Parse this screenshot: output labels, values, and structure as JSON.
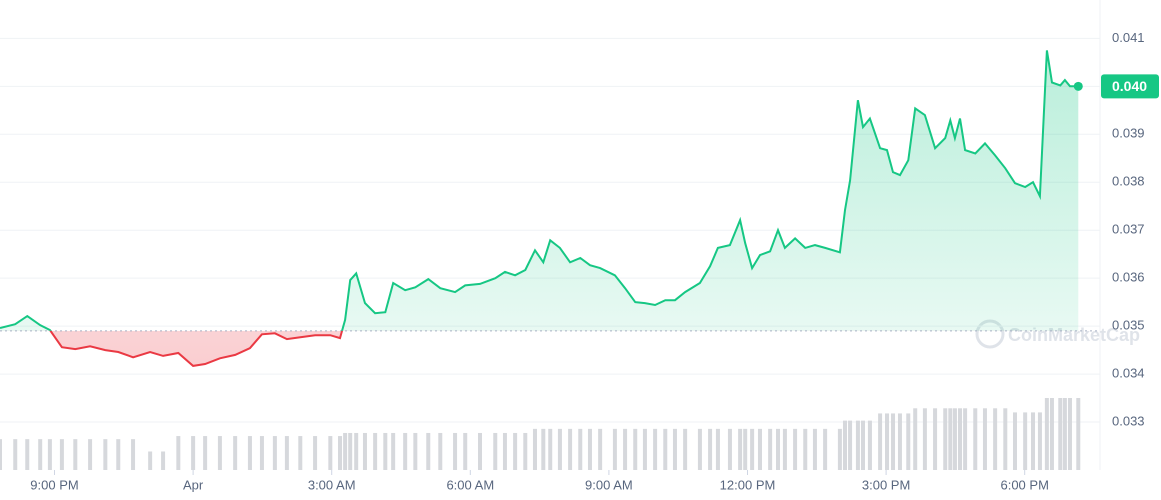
{
  "chart_data": {
    "type": "line",
    "brand": "CoinMarketCap",
    "x": [
      -4.18,
      -3.85,
      -3.59,
      -3.31,
      -3.1,
      -2.84,
      -2.55,
      -2.23,
      -1.9,
      -1.62,
      -1.3,
      -0.93,
      -0.65,
      -0.32,
      0,
      0.26,
      0.58,
      0.91,
      1.23,
      1.49,
      1.77,
      2.03,
      2.32,
      2.64,
      2.97,
      3.18,
      3.29,
      3.4,
      3.53,
      3.72,
      3.94,
      4.16,
      4.33,
      4.59,
      4.81,
      5.09,
      5.35,
      5.67,
      5.89,
      6.21,
      6.54,
      6.75,
      6.97,
      7.19,
      7.4,
      7.58,
      7.73,
      7.94,
      8.16,
      8.38,
      8.59,
      8.81,
      9.13,
      9.35,
      9.57,
      9.78,
      10.0,
      10.22,
      10.43,
      10.65,
      10.97,
      11.19,
      11.36,
      11.62,
      11.84,
      11.95,
      12.1,
      12.27,
      12.49,
      12.66,
      12.81,
      13.03,
      13.25,
      13.46,
      13.68,
      14.0,
      14.11,
      14.22,
      14.39,
      14.5,
      14.65,
      14.87,
      15.02,
      15.15,
      15.3,
      15.48,
      15.63,
      15.84,
      16.06,
      16.28,
      16.39,
      16.49,
      16.6,
      16.71,
      16.93,
      17.14,
      17.36,
      17.58,
      17.79,
      18.01,
      18.18,
      18.33,
      18.48,
      18.59,
      18.77,
      18.87,
      18.98,
      19.16
    ],
    "series": [
      {
        "name": "Price",
        "color": "#16c784",
        "down_color": "#ea3943",
        "values": [
          0.03496,
          0.03504,
          0.03521,
          0.03502,
          0.03492,
          0.03456,
          0.03452,
          0.03458,
          0.0345,
          0.03446,
          0.03435,
          0.03446,
          0.03438,
          0.03444,
          0.03417,
          0.03421,
          0.03433,
          0.0344,
          0.03454,
          0.03483,
          0.03485,
          0.03473,
          0.03477,
          0.03481,
          0.03481,
          0.03475,
          0.03513,
          0.03596,
          0.0361,
          0.03548,
          0.03527,
          0.03529,
          0.0359,
          0.03575,
          0.03581,
          0.03598,
          0.03579,
          0.03571,
          0.03585,
          0.03588,
          0.036,
          0.03613,
          0.03606,
          0.03617,
          0.03658,
          0.03633,
          0.03679,
          0.03663,
          0.03633,
          0.03642,
          0.03627,
          0.03621,
          0.03606,
          0.03579,
          0.0355,
          0.03548,
          0.03544,
          0.03554,
          0.03554,
          0.03571,
          0.0359,
          0.03625,
          0.03663,
          0.03669,
          0.03721,
          0.03673,
          0.03621,
          0.03648,
          0.03656,
          0.037,
          0.03663,
          0.03683,
          0.03663,
          0.03669,
          0.03663,
          0.03654,
          0.03742,
          0.03804,
          0.03971,
          0.03915,
          0.03933,
          0.03871,
          0.03867,
          0.03821,
          0.03815,
          0.03846,
          0.03954,
          0.0394,
          0.03871,
          0.03892,
          0.03929,
          0.03892,
          0.03933,
          0.03867,
          0.0386,
          0.03881,
          0.03856,
          0.03829,
          0.03798,
          0.0379,
          0.038,
          0.03771,
          0.04075,
          0.04008,
          0.04002,
          0.04013,
          0.04,
          0.04
        ]
      },
      {
        "name": "Volume",
        "color": "#d6d8dc",
        "values": [
          30,
          30,
          30,
          30,
          30,
          30,
          30,
          30,
          30,
          30,
          30,
          18,
          18,
          33,
          33,
          33,
          33,
          33,
          33,
          33,
          33,
          33,
          33,
          33,
          33,
          33,
          36,
          36,
          36,
          36,
          36,
          36,
          36,
          36,
          36,
          36,
          36,
          36,
          36,
          36,
          36,
          36,
          36,
          36,
          40,
          40,
          40,
          40,
          40,
          40,
          40,
          40,
          40,
          40,
          40,
          40,
          40,
          40,
          40,
          40,
          40,
          40,
          40,
          40,
          40,
          40,
          40,
          40,
          40,
          40,
          40,
          40,
          40,
          40,
          40,
          40,
          48,
          48,
          48,
          48,
          48,
          55,
          55,
          55,
          55,
          55,
          60,
          60,
          60,
          60,
          60,
          60,
          60,
          60,
          60,
          60,
          60,
          60,
          56,
          56,
          56,
          56,
          70,
          70,
          70,
          70,
          70,
          70
        ]
      }
    ],
    "baseline": 0.0349,
    "last_price": {
      "value": 0.04,
      "label": "0.040"
    },
    "xlim": [
      -4.18,
      19.63
    ],
    "xticks": [
      {
        "value": -3,
        "label": "9:00 PM"
      },
      {
        "value": 0,
        "label": "Apr"
      },
      {
        "value": 3,
        "label": "3:00 AM"
      },
      {
        "value": 6,
        "label": "6:00 AM"
      },
      {
        "value": 9,
        "label": "9:00 AM"
      },
      {
        "value": 12,
        "label": "12:00 PM"
      },
      {
        "value": 15,
        "label": "3:00 PM"
      },
      {
        "value": 18,
        "label": "6:00 PM"
      }
    ],
    "ylim": [
      0.032,
      0.0418
    ],
    "yticks": [
      0.033,
      0.034,
      0.035,
      0.036,
      0.037,
      0.038,
      0.039,
      0.04,
      0.041
    ],
    "grid": true
  }
}
